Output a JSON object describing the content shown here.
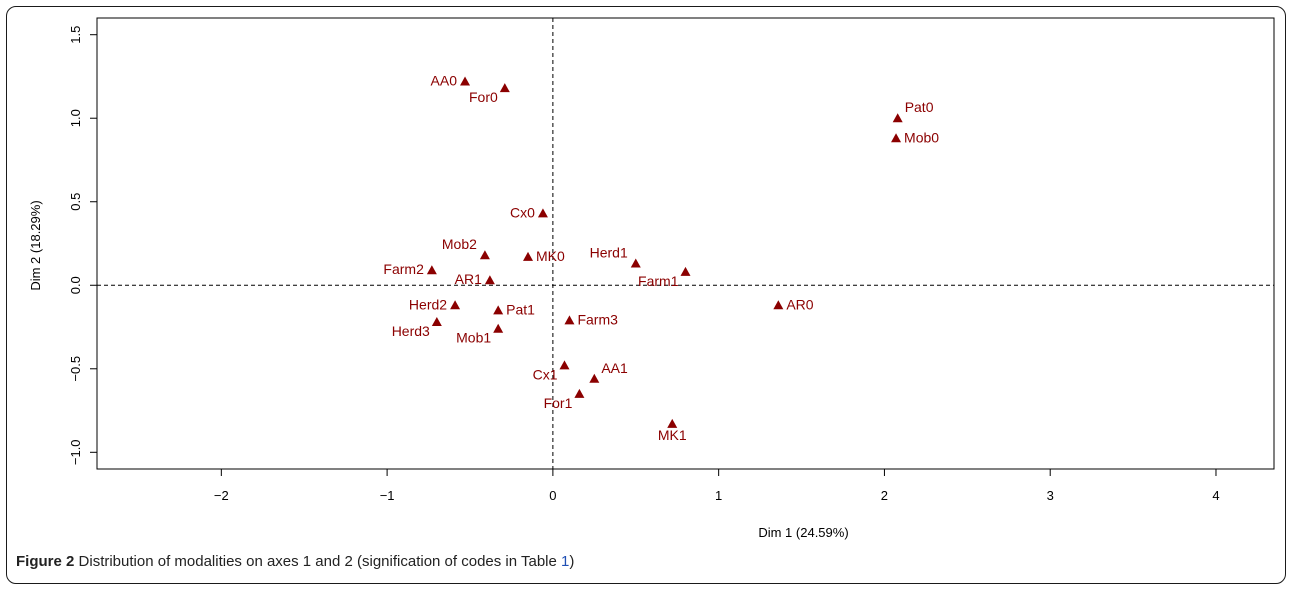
{
  "chart_data": {
    "type": "scatter",
    "xlabel": "Dim 1 (24.59%)",
    "ylabel": "Dim 2 (18.29%)",
    "xlim": [
      -2.75,
      4.35
    ],
    "ylim": [
      -1.1,
      1.6
    ],
    "xticks": [
      -2,
      -1,
      0,
      1,
      2,
      3,
      4
    ],
    "yticks": [
      -1.0,
      -0.5,
      0.0,
      0.5,
      1.0,
      1.5
    ],
    "ytick_labels": [
      "-1.0",
      "-0.5",
      "0.0",
      "0.5",
      "1.0",
      "1.5"
    ],
    "reference_lines": {
      "x": 0,
      "y": 0,
      "style": "dashed"
    },
    "grid": false,
    "marker": "triangle",
    "marker_color": "#8b0000",
    "points": [
      {
        "label": "AA0",
        "x": -0.53,
        "y": 1.22,
        "label_pos": "left"
      },
      {
        "label": "For0",
        "x": -0.29,
        "y": 1.18,
        "label_pos": "below-left"
      },
      {
        "label": "Pat0",
        "x": 2.08,
        "y": 1.0,
        "label_pos": "above-right"
      },
      {
        "label": "Mob0",
        "x": 2.07,
        "y": 0.88,
        "label_pos": "right"
      },
      {
        "label": "Cx0",
        "x": -0.06,
        "y": 0.43,
        "label_pos": "left"
      },
      {
        "label": "Mob2",
        "x": -0.41,
        "y": 0.18,
        "label_pos": "above-left"
      },
      {
        "label": "MK0",
        "x": -0.15,
        "y": 0.17,
        "label_pos": "right"
      },
      {
        "label": "Herd1",
        "x": 0.5,
        "y": 0.13,
        "label_pos": "above-left"
      },
      {
        "label": "Farm1",
        "x": 0.8,
        "y": 0.08,
        "label_pos": "below-left"
      },
      {
        "label": "Farm2",
        "x": -0.73,
        "y": 0.09,
        "label_pos": "left"
      },
      {
        "label": "AR1",
        "x": -0.38,
        "y": 0.03,
        "label_pos": "left"
      },
      {
        "label": "AR0",
        "x": 1.36,
        "y": -0.12,
        "label_pos": "right"
      },
      {
        "label": "Herd2",
        "x": -0.59,
        "y": -0.12,
        "label_pos": "left"
      },
      {
        "label": "Pat1",
        "x": -0.33,
        "y": -0.15,
        "label_pos": "right"
      },
      {
        "label": "Farm3",
        "x": 0.1,
        "y": -0.21,
        "label_pos": "right"
      },
      {
        "label": "Herd3",
        "x": -0.7,
        "y": -0.22,
        "label_pos": "below-left"
      },
      {
        "label": "Mob1",
        "x": -0.33,
        "y": -0.26,
        "label_pos": "below-left"
      },
      {
        "label": "Cx1",
        "x": 0.07,
        "y": -0.48,
        "label_pos": "below-left"
      },
      {
        "label": "AA1",
        "x": 0.25,
        "y": -0.56,
        "label_pos": "above-right"
      },
      {
        "label": "For1",
        "x": 0.16,
        "y": -0.65,
        "label_pos": "below-left"
      },
      {
        "label": "MK1",
        "x": 0.72,
        "y": -0.83,
        "label_pos": "below"
      }
    ]
  },
  "caption": {
    "figure_label": "Figure 2",
    "text_before": " Distribution of modalities on axes 1 and 2 (signification of codes in Table ",
    "table_ref": "1",
    "text_after": ")"
  }
}
